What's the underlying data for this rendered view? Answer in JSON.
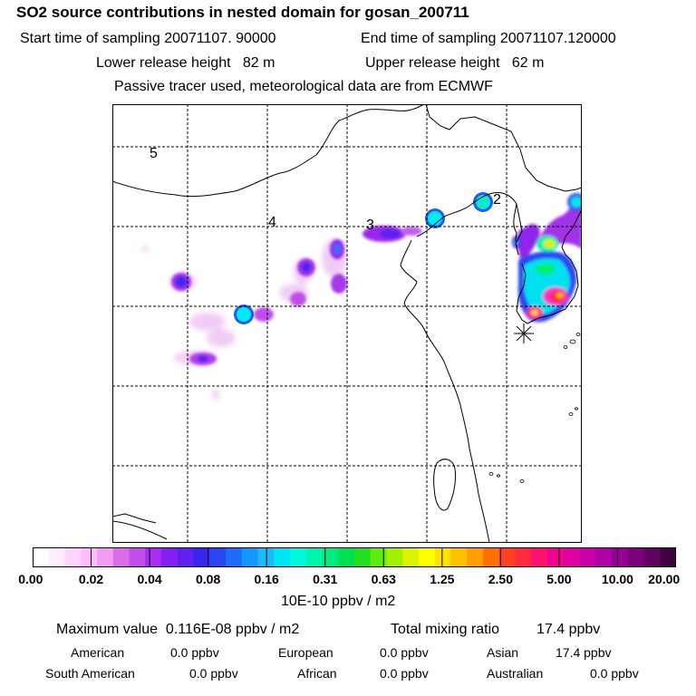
{
  "title": "SO2 source contributions in nested domain for gosan_200711",
  "header": {
    "start_label": "Start time of sampling",
    "start_value": "20071107. 90000",
    "end_label": "End time of sampling",
    "end_value": "20071107.120000",
    "lower_label": "Lower release height",
    "lower_value": "82 m",
    "upper_label": "Upper release height",
    "upper_value": "62 m",
    "note": "Passive tracer used, meteorological data are from ECMWF"
  },
  "map": {
    "region_labels": [
      "5",
      "4",
      "3",
      "2"
    ],
    "receptor": "gosan-star-marker"
  },
  "colorbar": {
    "ticks": [
      "0.00",
      "0.02",
      "0.04",
      "0.08",
      "0.16",
      "0.31",
      "0.63",
      "1.25",
      "2.50",
      "5.00",
      "10.00",
      "20.00"
    ],
    "unit": "10E-10 ppbv / m2",
    "colors": [
      "#ffffff",
      "#ffeeff",
      "#ffd6ff",
      "#ffbdff",
      "#f29bf2",
      "#d86de8",
      "#c04ee8",
      "#a82cf2",
      "#8420f2",
      "#6020f0",
      "#3c24f0",
      "#2846f4",
      "#1e6cf8",
      "#1496fa",
      "#18bcfa",
      "#00e6f8",
      "#00f8e0",
      "#00f4b0",
      "#00ec80",
      "#00e050",
      "#20e020",
      "#60ec10",
      "#a0f000",
      "#d8f400",
      "#ffff00",
      "#ffe000",
      "#ffc000",
      "#ffa000",
      "#ff7000",
      "#ff4020",
      "#ff2a40",
      "#ff1070",
      "#f20090",
      "#e000a0",
      "#ca00a8",
      "#b000a8",
      "#960096",
      "#7c007c",
      "#600060",
      "#400040"
    ]
  },
  "stats": {
    "max_label": "Maximum value",
    "max_value": "0.116E-08 ppbv / m2",
    "total_label": "Total mixing ratio",
    "total_value": "17.4 ppbv",
    "regions": [
      {
        "name": "American",
        "value": "0.0 ppbv"
      },
      {
        "name": "European",
        "value": "0.0 ppbv"
      },
      {
        "name": "Asian",
        "value": "17.4 ppbv"
      },
      {
        "name": "South American",
        "value": "0.0 ppbv"
      },
      {
        "name": "African",
        "value": "0.0 ppbv"
      },
      {
        "name": "Australian",
        "value": "0.0 ppbv"
      }
    ]
  }
}
